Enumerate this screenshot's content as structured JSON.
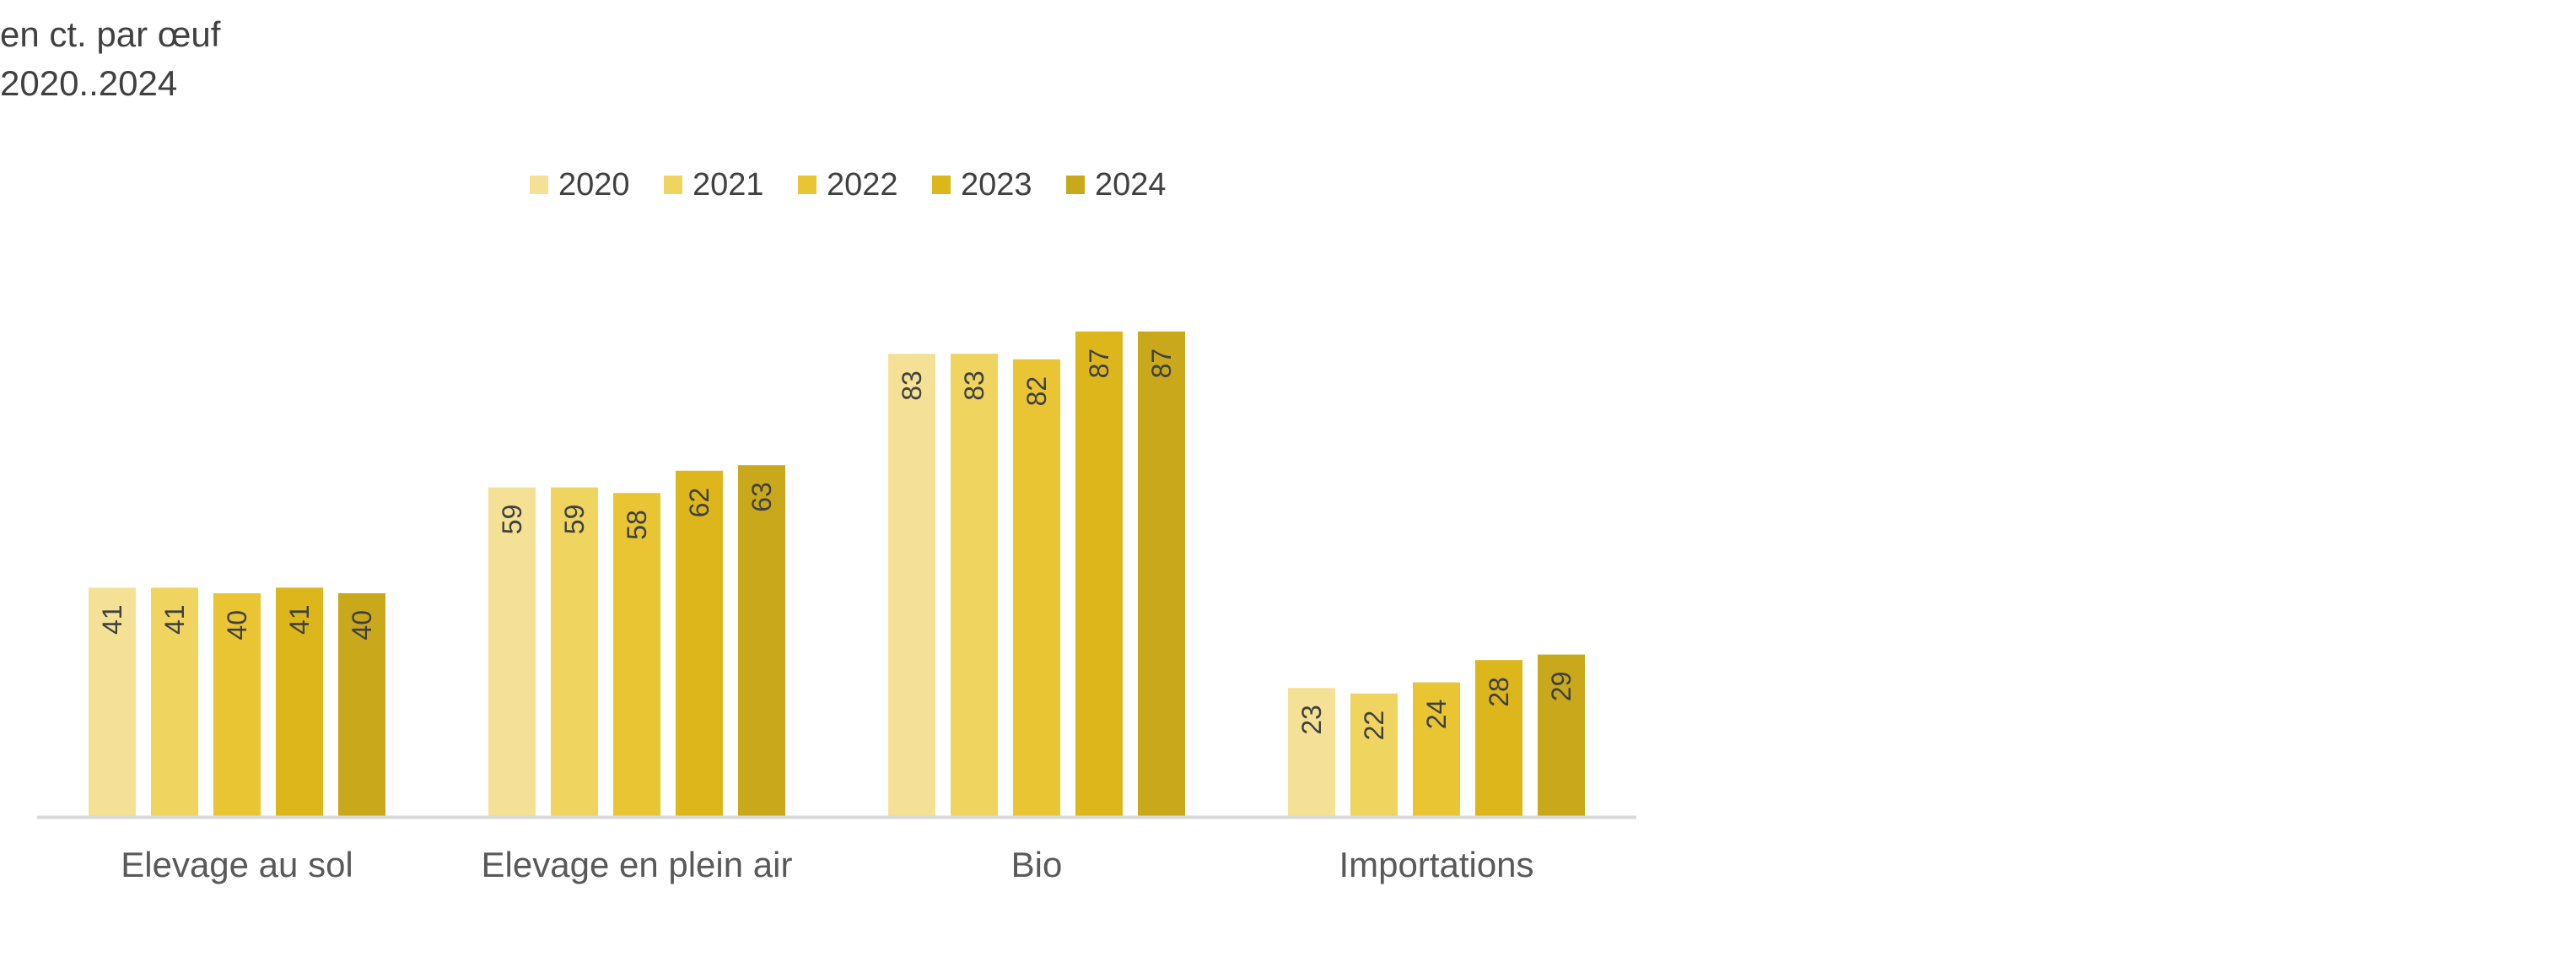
{
  "header": {
    "unit": "en ct. par œuf",
    "period": "2020..2024"
  },
  "chart_data": {
    "type": "bar",
    "categories": [
      "Elevage au sol",
      "Elevage en plein air",
      "Bio",
      "Importations"
    ],
    "series": [
      {
        "name": "2020",
        "values": [
          41,
          59,
          83,
          23
        ],
        "color": "#F5E196"
      },
      {
        "name": "2021",
        "values": [
          41,
          59,
          83,
          22
        ],
        "color": "#F0D460"
      },
      {
        "name": "2022",
        "values": [
          40,
          58,
          82,
          24
        ],
        "color": "#E9C534"
      },
      {
        "name": "2023",
        "values": [
          41,
          62,
          87,
          28
        ],
        "color": "#DDB61C"
      },
      {
        "name": "2024",
        "values": [
          40,
          63,
          87,
          29
        ],
        "color": "#C9A81B"
      }
    ],
    "ylim": [
      0,
      100
    ],
    "grid": false,
    "legend": "top",
    "data_labels": "inside-top-rotated"
  }
}
